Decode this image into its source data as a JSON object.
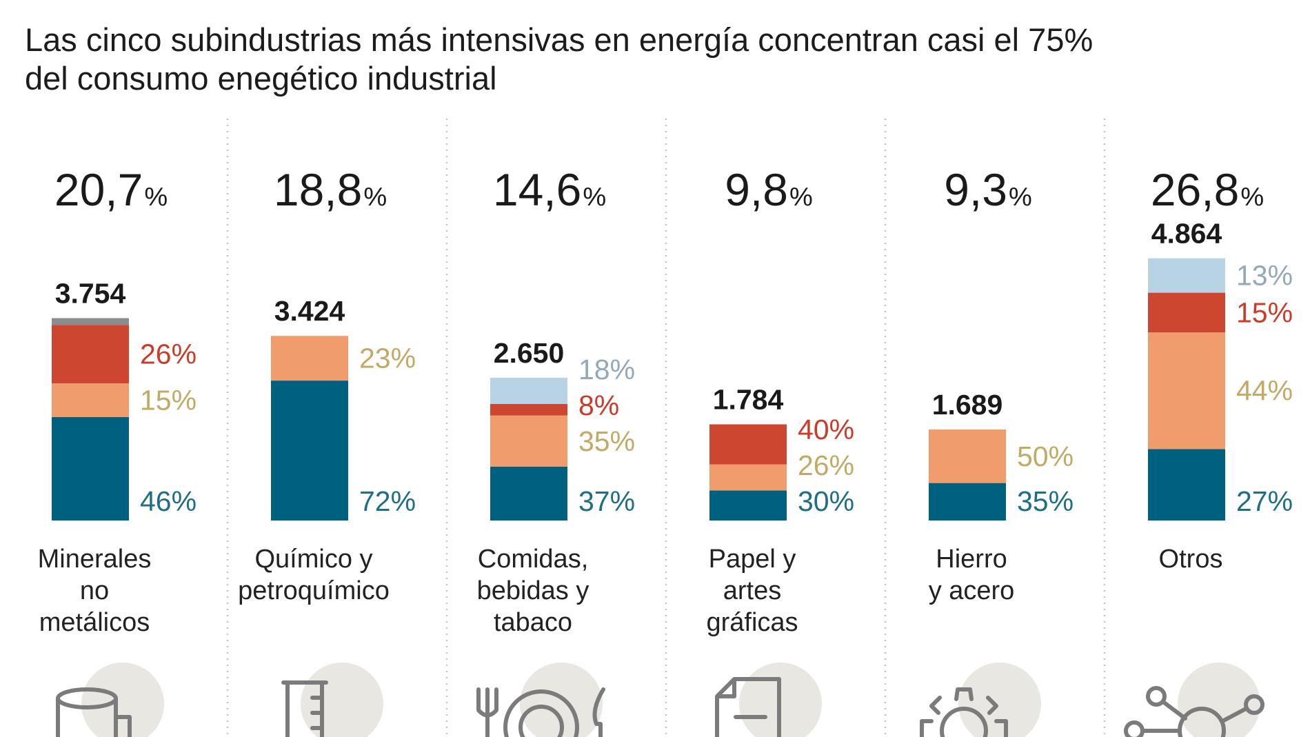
{
  "header": {
    "title_line1": "Las cinco subindustrias más intensivas en energía concentran casi el 75%",
    "title_line2": "del consumo enegético industrial"
  },
  "colors": {
    "dark_blue": "#00607f",
    "light_orange": "#f09c6c",
    "red": "#cd4630",
    "light_blue": "#b7d3e4",
    "gray": "#8a8d8f",
    "label_dark_blue": "#1e6e86",
    "label_gold": "#c2a966",
    "label_red": "#cd3b28",
    "label_light_blue": "#93a9bb",
    "icon_circle": "#e9e7e2",
    "icon_line": "#7b7b7b",
    "separator": "#c4c4c4"
  },
  "chart_data": {
    "type": "bar",
    "title": "Las cinco subindustrias más intensivas en energía concentran casi el 75% del consumo enegético industrial",
    "stacked": true,
    "units_total": "",
    "categories": [
      {
        "name_lines": [
          "Minerales",
          "no",
          "metálicos"
        ],
        "share_value": "20,7",
        "share_unit": "%",
        "total_label": "3.754",
        "total": 3754,
        "icon": "cylinder-icon",
        "segments": [
          {
            "key": "dark_blue",
            "value": 46,
            "label": "46%"
          },
          {
            "key": "light_orange",
            "value": 15,
            "label": "15%"
          },
          {
            "key": "red",
            "value": 26,
            "label": "26%"
          },
          {
            "key": "gray",
            "value": 3,
            "label": ""
          }
        ]
      },
      {
        "name_lines": [
          "Químico y",
          "petroquímico"
        ],
        "share_value": "18,8",
        "share_unit": "%",
        "total_label": "3.424",
        "total": 3424,
        "icon": "beaker-icon",
        "segments": [
          {
            "key": "dark_blue",
            "value": 72,
            "label": "72%"
          },
          {
            "key": "light_orange",
            "value": 23,
            "label": "23%"
          }
        ]
      },
      {
        "name_lines": [
          "Comidas,",
          "bebidas y",
          "tabaco"
        ],
        "share_value": "14,6",
        "share_unit": "%",
        "total_label": "2.650",
        "total": 2650,
        "icon": "fork-plate-knife-icon",
        "segments": [
          {
            "key": "dark_blue",
            "value": 37,
            "label": "37%"
          },
          {
            "key": "light_orange",
            "value": 35,
            "label": "35%"
          },
          {
            "key": "red",
            "value": 8,
            "label": "8%"
          },
          {
            "key": "light_blue",
            "value": 18,
            "label": "18%"
          }
        ]
      },
      {
        "name_lines": [
          "Papel y",
          "artes",
          "gráficas"
        ],
        "share_value": "9,8",
        "share_unit": "%",
        "total_label": "1.784",
        "total": 1784,
        "icon": "document-icon",
        "segments": [
          {
            "key": "dark_blue",
            "value": 30,
            "label": "30%"
          },
          {
            "key": "light_orange",
            "value": 26,
            "label": "26%"
          },
          {
            "key": "red",
            "value": 40,
            "label": "40%"
          }
        ]
      },
      {
        "name_lines": [
          "Hierro",
          "y acero"
        ],
        "share_value": "9,3",
        "share_unit": "%",
        "total_label": "1.689",
        "total": 1689,
        "icon": "gear-icon",
        "segments": [
          {
            "key": "dark_blue",
            "value": 35,
            "label": "35%"
          },
          {
            "key": "light_orange",
            "value": 50,
            "label": "50%"
          }
        ]
      },
      {
        "name_lines": [
          "Otros"
        ],
        "share_value": "26,8",
        "share_unit": "%",
        "total_label": "4.864",
        "total": 4864,
        "icon": "network-icon",
        "segments": [
          {
            "key": "dark_blue",
            "value": 27,
            "label": "27%"
          },
          {
            "key": "light_orange",
            "value": 44,
            "label": "44%"
          },
          {
            "key": "red",
            "value": 15,
            "label": "15%"
          },
          {
            "key": "light_blue",
            "value": 13,
            "label": "13%"
          }
        ]
      }
    ]
  }
}
